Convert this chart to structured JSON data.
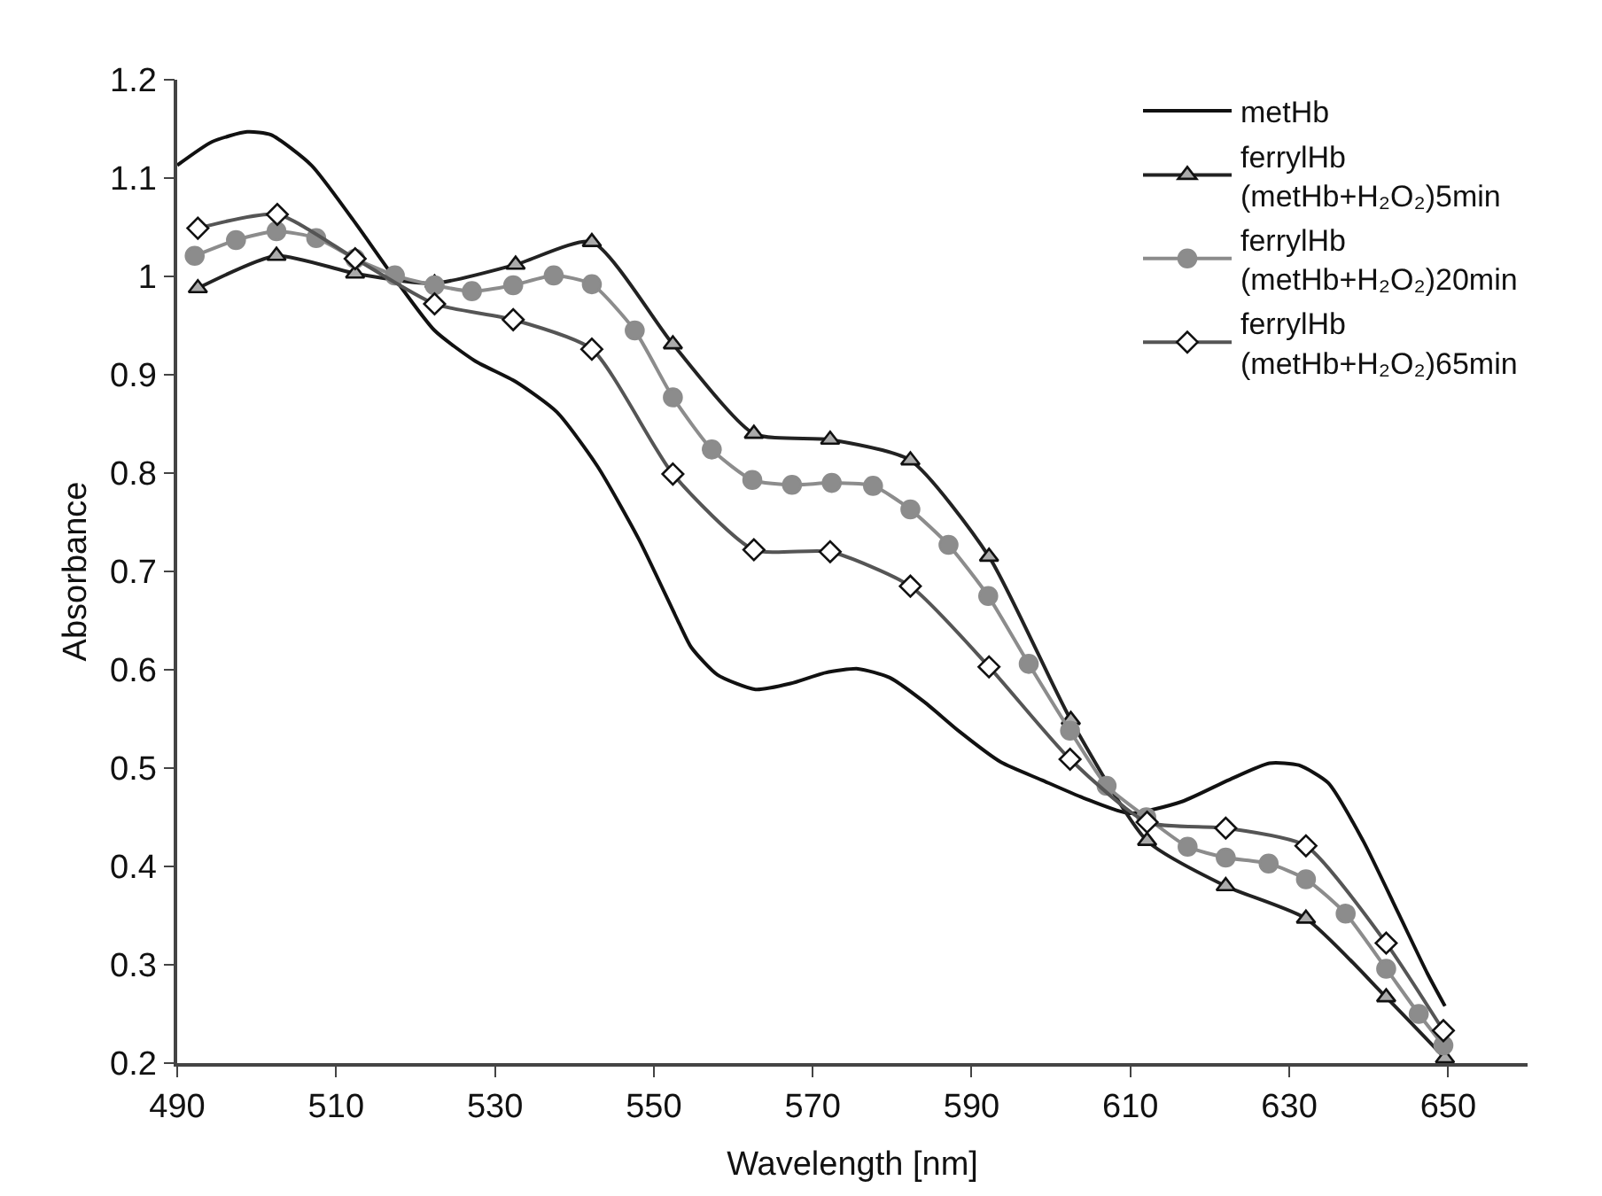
{
  "chart_data": {
    "type": "line",
    "xlabel": "Wavelength [nm]",
    "ylabel": "Absorbance",
    "xlim": [
      490,
      660
    ],
    "xticks": [
      490,
      510,
      530,
      550,
      570,
      590,
      610,
      630,
      650
    ],
    "ylim": [
      0.2,
      1.2
    ],
    "yticks": [
      0.2,
      0.3,
      0.4,
      0.5,
      0.6,
      0.7,
      0.8,
      0.9,
      1,
      1.1,
      1.2
    ],
    "legend": "top right",
    "series": [
      {
        "name": "metHb",
        "color": "#111111",
        "marker": "none",
        "x": [
          490,
          494.4,
          498.8,
          501.8,
          506.9,
          512.1,
          517.2,
          522.4,
          527.5,
          532.6,
          537.8,
          542.9,
          548.1,
          553.2,
          554.7,
          558,
          562.8,
          567.2,
          571.6,
          575.7,
          579.7,
          584.1,
          588.5,
          593.7,
          598.8,
          604,
          609.9,
          616.5,
          622.4,
          627.5,
          631.2,
          634.9,
          639.3,
          643.7,
          647.4,
          649.6
        ],
        "values": [
          1.113,
          1.137,
          1.147,
          1.144,
          1.113,
          1.058,
          1.0,
          0.945,
          0.914,
          0.893,
          0.862,
          0.807,
          0.733,
          0.647,
          0.623,
          0.595,
          0.58,
          0.586,
          0.597,
          0.601,
          0.592,
          0.567,
          0.537,
          0.506,
          0.488,
          0.47,
          0.454,
          0.466,
          0.488,
          0.505,
          0.503,
          0.485,
          0.426,
          0.353,
          0.291,
          0.258
        ]
      },
      {
        "name": "ferrylHb\n(metHb+H₂O₂)5min",
        "color": "#222222",
        "marker": "triangle",
        "x": [
          492.6,
          502.5,
          512.4,
          522.4,
          532.6,
          542.2,
          552.4,
          562.6,
          572.2,
          582.3,
          592.2,
          602.5,
          612.1,
          622.0,
          632.1,
          642.2,
          649.6
        ],
        "values": [
          0.988,
          1.021,
          1.003,
          0.993,
          1.012,
          1.035,
          0.931,
          0.84,
          0.834,
          0.813,
          0.715,
          0.549,
          0.426,
          0.38,
          0.347,
          0.267,
          0.205
        ]
      },
      {
        "name": "ferrylHb\n(metHb+H₂O₂)20min",
        "color": "#8c8c8c",
        "marker": "circle",
        "x": [
          492.2,
          497.4,
          502.5,
          507.5,
          512.4,
          517.4,
          522.4,
          527.1,
          532.3,
          537.4,
          542.2,
          547.6,
          552.4,
          557.3,
          562.4,
          567.4,
          572.4,
          577.6,
          582.3,
          587.1,
          592.1,
          597.2,
          602.4,
          607.0,
          612.0,
          617.2,
          622.0,
          627.4,
          632.1,
          637.1,
          642.2,
          646.3,
          649.4
        ],
        "values": [
          1.021,
          1.037,
          1.046,
          1.039,
          1.018,
          1.001,
          0.991,
          0.985,
          0.991,
          1.001,
          0.992,
          0.945,
          0.877,
          0.824,
          0.793,
          0.788,
          0.79,
          0.787,
          0.763,
          0.727,
          0.675,
          0.606,
          0.538,
          0.482,
          0.45,
          0.42,
          0.409,
          0.403,
          0.387,
          0.352,
          0.296,
          0.25,
          0.218
        ]
      },
      {
        "name": "ferrylHb\n(metHb+H₂O₂)65min",
        "color": "#555555",
        "marker": "diamond",
        "x": [
          492.6,
          502.6,
          512.4,
          522.4,
          532.3,
          542.2,
          552.4,
          562.6,
          572.2,
          582.3,
          592.2,
          602.4,
          612.1,
          622.0,
          632.1,
          642.2,
          649.4
        ],
        "values": [
          1.049,
          1.063,
          1.018,
          0.972,
          0.956,
          0.926,
          0.799,
          0.722,
          0.72,
          0.685,
          0.603,
          0.509,
          0.445,
          0.439,
          0.421,
          0.322,
          0.233
        ]
      }
    ]
  }
}
